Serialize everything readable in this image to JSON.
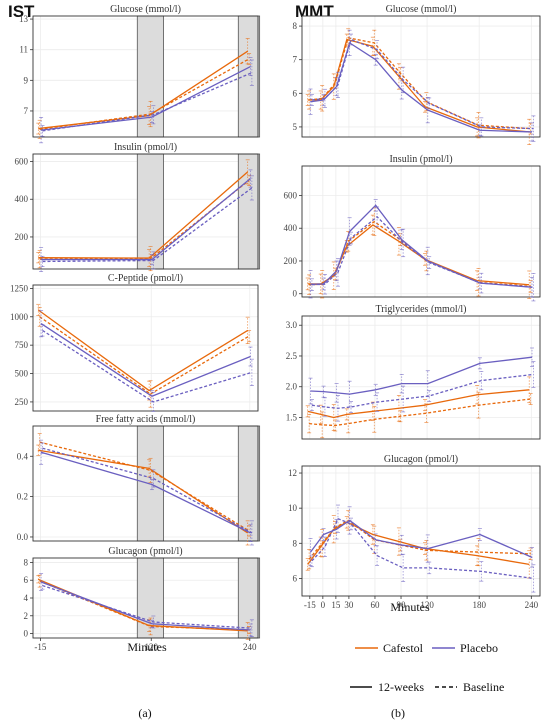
{
  "colors": {
    "cafestol": "#e8690c",
    "placebo": "#6a5fc0",
    "band": "#dcdcdc",
    "grid": "#ececec"
  },
  "labels": {
    "ist": "IST",
    "mmt": "MMT",
    "minutes": "Minutes",
    "sub_a": "(a)",
    "sub_b": "(b)"
  },
  "legend": {
    "cafestol": "Cafestol",
    "placebo": "Placebo",
    "twelve_weeks": "12-weeks",
    "baseline": "Baseline"
  },
  "chart_data": [
    {
      "type": "line",
      "title": "Glucose (mmol/l)",
      "group": "IST",
      "x": [
        -15,
        120,
        240
      ],
      "x_ticks": [
        "-15",
        "120",
        "240"
      ],
      "ylim": [
        5.3,
        13.2
      ],
      "y_ticks": [
        7,
        9,
        11,
        13
      ],
      "series": [
        {
          "name": "Cafestol",
          "line": "12-weeks",
          "values": [
            5.85,
            6.7,
            10.9
          ]
        },
        {
          "name": "Cafestol",
          "line": "Baseline",
          "values": [
            5.8,
            6.8,
            10.4
          ]
        },
        {
          "name": "Placebo",
          "line": "12-weeks",
          "values": [
            5.75,
            6.6,
            9.9
          ]
        },
        {
          "name": "Placebo",
          "line": "Baseline",
          "values": [
            5.7,
            6.75,
            9.5
          ]
        }
      ]
    },
    {
      "type": "line",
      "title": "Insulin (pmol/l)",
      "group": "IST",
      "x": [
        -15,
        120,
        240
      ],
      "x_ticks": [
        "-15",
        "120",
        "240"
      ],
      "ylim": [
        30,
        640
      ],
      "y_ticks": [
        200,
        400,
        600
      ],
      "series": [
        {
          "name": "Cafestol",
          "line": "12-weeks",
          "values": [
            90,
            88,
            545
          ]
        },
        {
          "name": "Cafestol",
          "line": "Baseline",
          "values": [
            82,
            85,
            500
          ]
        },
        {
          "name": "Placebo",
          "line": "12-weeks",
          "values": [
            80,
            80,
            510
          ]
        },
        {
          "name": "Placebo",
          "line": "Baseline",
          "values": [
            70,
            75,
            460
          ]
        }
      ]
    },
    {
      "type": "line",
      "title": "C-Peptide (pmol/l)",
      "group": "IST",
      "x": [
        -15,
        120,
        240
      ],
      "x_ticks": [
        "-15",
        "120",
        "240"
      ],
      "ylim": [
        170,
        1280
      ],
      "y_ticks": [
        250,
        500,
        750,
        1000,
        1250
      ],
      "series": [
        {
          "name": "Cafestol",
          "line": "12-weeks",
          "values": [
            1060,
            350,
            880
          ]
        },
        {
          "name": "Cafestol",
          "line": "Baseline",
          "values": [
            1000,
            320,
            830
          ]
        },
        {
          "name": "Placebo",
          "line": "12-weeks",
          "values": [
            940,
            300,
            650
          ]
        },
        {
          "name": "Placebo",
          "line": "Baseline",
          "values": [
            880,
            250,
            510
          ]
        }
      ]
    },
    {
      "type": "line",
      "title": "Free fatty acids (mmol/l)",
      "group": "IST",
      "x": [
        -15,
        120,
        240
      ],
      "x_ticks": [
        "-15",
        "120",
        "240"
      ],
      "ylim": [
        -0.02,
        0.55
      ],
      "y_ticks": [
        0.0,
        0.2,
        0.4
      ],
      "series": [
        {
          "name": "Cafestol",
          "line": "12-weeks",
          "values": [
            0.43,
            0.34,
            0.02
          ]
        },
        {
          "name": "Cafestol",
          "line": "Baseline",
          "values": [
            0.47,
            0.33,
            0.03
          ]
        },
        {
          "name": "Placebo",
          "line": "12-weeks",
          "values": [
            0.42,
            0.26,
            0.02
          ]
        },
        {
          "name": "Placebo",
          "line": "Baseline",
          "values": [
            0.44,
            0.29,
            0.02
          ]
        }
      ]
    },
    {
      "type": "line",
      "title": "Glucagon (pmol/l)",
      "group": "IST",
      "x": [
        -15,
        120,
        240
      ],
      "x_ticks": [
        "-15",
        "120",
        "240"
      ],
      "ylim": [
        -0.5,
        8.5
      ],
      "y_ticks": [
        0,
        2,
        4,
        6,
        8
      ],
      "series": [
        {
          "name": "Cafestol",
          "line": "12-weeks",
          "values": [
            6.1,
            0.9,
            0.3
          ]
        },
        {
          "name": "Cafestol",
          "line": "Baseline",
          "values": [
            5.9,
            0.8,
            0.4
          ]
        },
        {
          "name": "Placebo",
          "line": "12-weeks",
          "values": [
            5.8,
            1.1,
            0.4
          ]
        },
        {
          "name": "Placebo",
          "line": "Baseline",
          "values": [
            5.4,
            1.3,
            0.6
          ]
        }
      ]
    },
    {
      "type": "line",
      "title": "Glucose (mmol/l)",
      "group": "MMT",
      "x": [
        -15,
        0,
        15,
        30,
        60,
        90,
        120,
        180,
        240
      ],
      "x_ticks": [
        "-15",
        "0",
        "15",
        "30",
        "60",
        "90",
        "120",
        "180",
        "240"
      ],
      "ylim": [
        4.7,
        8.3
      ],
      "y_ticks": [
        5,
        6,
        7,
        8
      ],
      "series": [
        {
          "name": "Cafestol",
          "line": "12-weeks",
          "values": [
            5.8,
            5.8,
            6.2,
            7.6,
            7.4,
            6.5,
            5.6,
            5.0,
            4.85
          ]
        },
        {
          "name": "Cafestol",
          "line": "Baseline",
          "values": [
            5.8,
            5.85,
            6.3,
            7.65,
            7.5,
            6.6,
            5.75,
            5.05,
            4.95
          ]
        },
        {
          "name": "Placebo",
          "line": "12-weeks",
          "values": [
            5.75,
            5.8,
            6.2,
            7.5,
            7.0,
            6.1,
            5.5,
            4.9,
            4.85
          ]
        },
        {
          "name": "Placebo",
          "line": "Baseline",
          "values": [
            5.8,
            5.85,
            6.25,
            7.6,
            7.3,
            6.4,
            5.7,
            5.0,
            4.95
          ]
        }
      ]
    },
    {
      "type": "line",
      "title": "Insulin (pmol/l)",
      "group": "MMT",
      "x": [
        -15,
        0,
        15,
        30,
        60,
        90,
        120,
        180,
        240
      ],
      "x_ticks": [
        "-15",
        "0",
        "15",
        "30",
        "60",
        "90",
        "120",
        "180",
        "240"
      ],
      "ylim": [
        -20,
        780
      ],
      "y_ticks": [
        0,
        200,
        400,
        600
      ],
      "series": [
        {
          "name": "Cafestol",
          "line": "12-weeks",
          "values": [
            60,
            60,
            110,
            290,
            420,
            320,
            210,
            80,
            55
          ]
        },
        {
          "name": "Cafestol",
          "line": "Baseline",
          "values": [
            55,
            58,
            120,
            320,
            440,
            330,
            200,
            70,
            45
          ]
        },
        {
          "name": "Placebo",
          "line": "12-weeks",
          "values": [
            58,
            60,
            140,
            380,
            540,
            330,
            200,
            65,
            40
          ]
        },
        {
          "name": "Placebo",
          "line": "Baseline",
          "values": [
            55,
            58,
            130,
            340,
            470,
            310,
            190,
            65,
            40
          ]
        }
      ]
    },
    {
      "type": "line",
      "title": "Triglycerides (mmol/l)",
      "group": "MMT",
      "x": [
        -15,
        0,
        15,
        30,
        60,
        90,
        120,
        180,
        240
      ],
      "x_ticks": [
        "-15",
        "0",
        "15",
        "30",
        "60",
        "90",
        "120",
        "180",
        "240"
      ],
      "ylim": [
        1.15,
        3.15
      ],
      "y_ticks": [
        1.5,
        2.0,
        2.5,
        3.0
      ],
      "series": [
        {
          "name": "Cafestol",
          "line": "12-weeks",
          "values": [
            1.6,
            1.55,
            1.5,
            1.55,
            1.6,
            1.65,
            1.7,
            1.87,
            1.95
          ]
        },
        {
          "name": "Cafestol",
          "line": "Baseline",
          "values": [
            1.4,
            1.38,
            1.37,
            1.4,
            1.47,
            1.52,
            1.57,
            1.7,
            1.8
          ]
        },
        {
          "name": "Placebo",
          "line": "12-weeks",
          "values": [
            1.93,
            1.92,
            1.9,
            1.88,
            1.95,
            2.05,
            2.05,
            2.38,
            2.48
          ]
        },
        {
          "name": "Placebo",
          "line": "Baseline",
          "values": [
            1.7,
            1.67,
            1.65,
            1.67,
            1.75,
            1.8,
            1.85,
            2.1,
            2.2
          ]
        }
      ]
    },
    {
      "type": "line",
      "title": "Glucagon (pmol/l)",
      "group": "MMT",
      "x": [
        -15,
        0,
        15,
        30,
        60,
        90,
        120,
        180,
        240
      ],
      "x_ticks": [
        "-15",
        "0",
        "15",
        "30",
        "60",
        "90",
        "120",
        "180",
        "240"
      ],
      "ylim": [
        5.0,
        12.4
      ],
      "y_ticks": [
        6,
        8,
        10,
        12
      ],
      "series": [
        {
          "name": "Cafestol",
          "line": "12-weeks",
          "values": [
            6.8,
            7.8,
            8.8,
            9.2,
            8.5,
            8.1,
            7.7,
            7.3,
            6.8
          ]
        },
        {
          "name": "Cafestol",
          "line": "Baseline",
          "values": [
            7.1,
            8.0,
            8.9,
            9.3,
            8.2,
            7.9,
            7.6,
            7.5,
            7.4
          ]
        },
        {
          "name": "Placebo",
          "line": "12-weeks",
          "values": [
            7.5,
            8.5,
            8.8,
            9.3,
            8.2,
            7.9,
            7.7,
            8.5,
            7.2
          ]
        },
        {
          "name": "Placebo",
          "line": "Baseline",
          "values": [
            7.0,
            7.8,
            9.4,
            9.1,
            7.3,
            6.6,
            6.6,
            6.4,
            6.0
          ]
        }
      ]
    }
  ]
}
